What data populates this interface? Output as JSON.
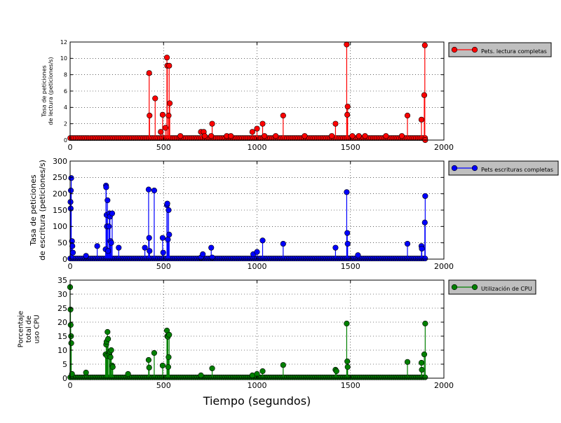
{
  "chart_data": [
    {
      "type": "line",
      "ylabel": "Tasa de peticiones\nde lectura (peticiones/s)",
      "xlim": [
        0,
        2000
      ],
      "ylim": [
        0,
        12
      ],
      "yticks": [
        0,
        2,
        4,
        6,
        8,
        10,
        12
      ],
      "xticks": [
        0,
        500,
        1000,
        1500,
        2000
      ],
      "grid": true,
      "legend_position": "outside-right",
      "series": [
        {
          "name": "Pets. lectura completas",
          "color": "#ff0000",
          "x": [
            0,
            10,
            20,
            30,
            40,
            50,
            60,
            70,
            80,
            90,
            100,
            110,
            120,
            130,
            140,
            150,
            160,
            170,
            180,
            190,
            200,
            210,
            220,
            230,
            240,
            250,
            260,
            270,
            280,
            290,
            300,
            310,
            320,
            330,
            340,
            350,
            360,
            370,
            380,
            390,
            400,
            410,
            420,
            430,
            440,
            450,
            460,
            470,
            480,
            490,
            500,
            510,
            520,
            530,
            540,
            550,
            560,
            570,
            580,
            590,
            600,
            610,
            620,
            630,
            640,
            650,
            660,
            670,
            680,
            690,
            700,
            710,
            720,
            730,
            740,
            750,
            760,
            770,
            780,
            790,
            800,
            810,
            820,
            830,
            840,
            850,
            860,
            870,
            880,
            890,
            900,
            910,
            920,
            930,
            940,
            950,
            960,
            970,
            980,
            990,
            1000,
            1010,
            1020,
            1030,
            1040,
            1050,
            1060,
            1070,
            1080,
            1090,
            1100,
            1110,
            1120,
            1130,
            1140,
            1150,
            1160,
            1170,
            1180,
            1190,
            1200,
            1210,
            1220,
            1230,
            1240,
            1250,
            1260,
            1270,
            1280,
            1290,
            1300,
            1310,
            1320,
            1330,
            1340,
            1350,
            1360,
            1370,
            1380,
            1390,
            1400,
            1410,
            1420,
            1430,
            1440,
            1450,
            1460,
            1470,
            1480,
            1490,
            1500,
            1510,
            1520,
            1530,
            1540,
            1550,
            1560,
            1570,
            1580,
            1590,
            1600,
            1610,
            1620,
            1630,
            1640,
            1650,
            1660,
            1670,
            1680,
            1690,
            1700,
            1710,
            1720,
            1730,
            1740,
            1750,
            1760,
            1770,
            1780,
            1790,
            1800,
            1810,
            1820,
            1830,
            1840,
            1850,
            1860,
            1870,
            1880,
            1890,
            1900
          ],
          "spikes": [
            [
              423,
              8.2
            ],
            [
              425,
              3.0
            ],
            [
              455,
              5.1
            ],
            [
              485,
              1.0
            ],
            [
              495,
              3.1
            ],
            [
              510,
              1.5
            ],
            [
              518,
              10.1
            ],
            [
              520,
              9.1
            ],
            [
              527,
              3.0
            ],
            [
              530,
              9.1
            ],
            [
              533,
              4.5
            ],
            [
              590,
              0.5
            ],
            [
              700,
              1.0
            ],
            [
              715,
              1.0
            ],
            [
              720,
              0.5
            ],
            [
              755,
              0.5
            ],
            [
              760,
              2.0
            ],
            [
              838,
              0.5
            ],
            [
              860,
              0.5
            ],
            [
              975,
              1.0
            ],
            [
              1000,
              1.4
            ],
            [
              1030,
              2.0
            ],
            [
              1040,
              0.5
            ],
            [
              1100,
              0.5
            ],
            [
              1140,
              3.0
            ],
            [
              1255,
              0.5
            ],
            [
              1400,
              0.5
            ],
            [
              1420,
              2.0
            ],
            [
              1480,
              11.7
            ],
            [
              1483,
              3.1
            ],
            [
              1485,
              4.1
            ],
            [
              1510,
              0.5
            ],
            [
              1545,
              0.5
            ],
            [
              1578,
              0.5
            ],
            [
              1690,
              0.5
            ],
            [
              1775,
              0.5
            ],
            [
              1805,
              3.0
            ],
            [
              1880,
              2.5
            ],
            [
              1895,
              5.5
            ],
            [
              1898,
              11.6
            ],
            [
              1900,
              0.0
            ]
          ],
          "baseline": 0.25
        }
      ]
    },
    {
      "type": "line",
      "ylabel": "Tasa de peticiones\nde escritura (peticiones/s)",
      "xlim": [
        0,
        2000
      ],
      "ylim": [
        0,
        300
      ],
      "yticks": [
        0,
        50,
        100,
        150,
        200,
        250,
        300
      ],
      "xticks": [
        0,
        500,
        1000,
        1500,
        2000
      ],
      "grid": true,
      "legend_position": "outside-right",
      "series": [
        {
          "name": "Pets escrituras completas",
          "color": "#0000ff",
          "spikes": [
            [
              2,
              175
            ],
            [
              3,
              155
            ],
            [
              4,
              210
            ],
            [
              6,
              248
            ],
            [
              10,
              55
            ],
            [
              12,
              40
            ],
            [
              15,
              20
            ],
            [
              85,
              10
            ],
            [
              145,
              40
            ],
            [
              190,
              30
            ],
            [
              192,
              225
            ],
            [
              193,
              220
            ],
            [
              195,
              135
            ],
            [
              197,
              100
            ],
            [
              200,
              180
            ],
            [
              203,
              25
            ],
            [
              207,
              100
            ],
            [
              210,
              140
            ],
            [
              213,
              130
            ],
            [
              216,
              55
            ],
            [
              220,
              50
            ],
            [
              225,
              140
            ],
            [
              260,
              35
            ],
            [
              400,
              35
            ],
            [
              420,
              213
            ],
            [
              423,
              65
            ],
            [
              425,
              25
            ],
            [
              450,
              210
            ],
            [
              495,
              65
            ],
            [
              498,
              20
            ],
            [
              518,
              165
            ],
            [
              520,
              170
            ],
            [
              523,
              60
            ],
            [
              527,
              150
            ],
            [
              530,
              75
            ],
            [
              700,
              5
            ],
            [
              710,
              15
            ],
            [
              755,
              35
            ],
            [
              760,
              5
            ],
            [
              980,
              15
            ],
            [
              1000,
              22
            ],
            [
              1030,
              57
            ],
            [
              1140,
              47
            ],
            [
              1420,
              35
            ],
            [
              1480,
              205
            ],
            [
              1483,
              80
            ],
            [
              1485,
              47
            ],
            [
              1540,
              12
            ],
            [
              1805,
              47
            ],
            [
              1880,
              40
            ],
            [
              1882,
              32
            ],
            [
              1898,
              112
            ],
            [
              1900,
              193
            ]
          ],
          "baseline": 2
        }
      ]
    },
    {
      "type": "line",
      "ylabel": "Porcentaje\ntotal de\nuso CPU",
      "xlabel": "Tiempo (segundos)",
      "xlim": [
        0,
        2000
      ],
      "ylim": [
        0,
        35
      ],
      "yticks": [
        0,
        5,
        10,
        15,
        20,
        25,
        30,
        35
      ],
      "xticks": [
        0,
        500,
        1000,
        1500,
        2000
      ],
      "grid": true,
      "legend_position": "outside-right",
      "series": [
        {
          "name": "Utilización de CPU",
          "color": "#008000",
          "spikes": [
            [
              0,
              32.5
            ],
            [
              2,
              24.5
            ],
            [
              3,
              19.0
            ],
            [
              5,
              15.0
            ],
            [
              6,
              12.5
            ],
            [
              10,
              1.5
            ],
            [
              85,
              2.0
            ],
            [
              190,
              8.5
            ],
            [
              193,
              12.0
            ],
            [
              195,
              13.0
            ],
            [
              197,
              8.0
            ],
            [
              200,
              16.5
            ],
            [
              203,
              14.0
            ],
            [
              210,
              8.5
            ],
            [
              213,
              9.5
            ],
            [
              216,
              7.5
            ],
            [
              220,
              10.0
            ],
            [
              225,
              4.5
            ],
            [
              228,
              4.0
            ],
            [
              310,
              1.5
            ],
            [
              420,
              6.5
            ],
            [
              423,
              3.8
            ],
            [
              450,
              9.0
            ],
            [
              495,
              4.5
            ],
            [
              518,
              17.0
            ],
            [
              520,
              15.0
            ],
            [
              523,
              14.8
            ],
            [
              525,
              4.0
            ],
            [
              527,
              7.5
            ],
            [
              530,
              15.5
            ],
            [
              700,
              1.0
            ],
            [
              760,
              3.5
            ],
            [
              975,
              1.0
            ],
            [
              1000,
              1.5
            ],
            [
              1030,
              2.5
            ],
            [
              1140,
              4.7
            ],
            [
              1420,
              3.0
            ],
            [
              1425,
              2.5
            ],
            [
              1480,
              19.5
            ],
            [
              1483,
              6.0
            ],
            [
              1485,
              4.0
            ],
            [
              1805,
              5.8
            ],
            [
              1880,
              5.5
            ],
            [
              1882,
              3.0
            ],
            [
              1895,
              8.5
            ],
            [
              1900,
              19.5
            ]
          ],
          "baseline": 0.3
        }
      ]
    }
  ]
}
